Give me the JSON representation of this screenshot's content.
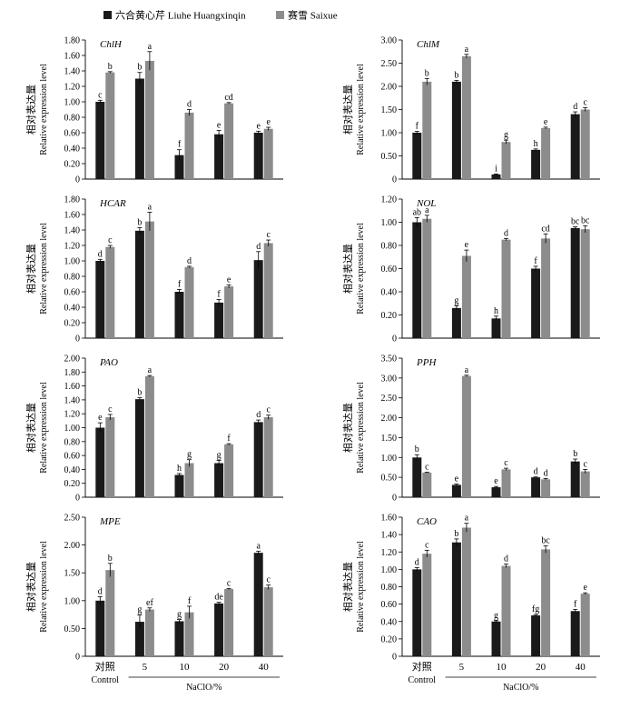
{
  "legend": {
    "items": [
      {
        "label": "六合黄心芹 Liuhe Huangxinqin",
        "color": "#1a1a1a"
      },
      {
        "label": "赛雪 Saixue",
        "color": "#8c8c8c"
      }
    ]
  },
  "ylabel_cn": "相对表达量",
  "ylabel_en": "Relative expression level",
  "x_axis": {
    "categories": [
      "5",
      "10",
      "20",
      "40"
    ],
    "control_cn": "对照",
    "control_en": "Control",
    "group_label": "NaClO/%"
  },
  "chart_data": [
    {
      "type": "bar",
      "title": "ChlH",
      "ylim": [
        0,
        1.8
      ],
      "yticks": [
        "0",
        "0.20",
        "0.40",
        "0.60",
        "0.80",
        "1.00",
        "1.20",
        "1.40",
        "1.60",
        "1.80"
      ],
      "series": [
        {
          "name": "六合黄心芹 Liuhe Huangxinqin",
          "values": [
            1.0,
            1.3,
            0.31,
            0.58,
            0.6
          ],
          "errors": [
            0.02,
            0.08,
            0.07,
            0.05,
            0.02
          ],
          "letters": [
            "c",
            "b",
            "f",
            "e",
            "e"
          ]
        },
        {
          "name": "赛雪 Saixue",
          "values": [
            1.38,
            1.53,
            0.86,
            0.98,
            0.65
          ],
          "errors": [
            0.01,
            0.12,
            0.04,
            0.01,
            0.02
          ],
          "letters": [
            "b",
            "a",
            "d",
            "cd",
            "e"
          ]
        }
      ]
    },
    {
      "type": "bar",
      "title": "ChlM",
      "ylim": [
        0,
        3.0
      ],
      "yticks": [
        "0",
        "0.50",
        "1.00",
        "1.50",
        "2.00",
        "2.50",
        "3.00"
      ],
      "series": [
        {
          "name": "六合黄心芹 Liuhe Huangxinqin",
          "values": [
            1.0,
            2.1,
            0.1,
            0.63,
            1.4
          ],
          "errors": [
            0.03,
            0.03,
            0.01,
            0.02,
            0.05
          ],
          "letters": [
            "f",
            "b",
            "i",
            "h",
            "d"
          ]
        },
        {
          "name": "赛雪 Saixue",
          "values": [
            2.1,
            2.65,
            0.8,
            1.1,
            1.5
          ],
          "errors": [
            0.07,
            0.04,
            0.04,
            0.02,
            0.04
          ],
          "letters": [
            "b",
            "a",
            "g",
            "e",
            "c"
          ]
        }
      ]
    },
    {
      "type": "bar",
      "title": "HCAR",
      "ylim": [
        0,
        1.8
      ],
      "yticks": [
        "0",
        "0.20",
        "0.40",
        "0.60",
        "0.80",
        "1.00",
        "1.20",
        "1.40",
        "1.60",
        "1.80"
      ],
      "series": [
        {
          "name": "六合黄心芹 Liuhe Huangxinqin",
          "values": [
            1.0,
            1.39,
            0.6,
            0.46,
            1.01
          ],
          "errors": [
            0.02,
            0.04,
            0.03,
            0.04,
            0.11
          ],
          "letters": [
            "d",
            "b",
            "f",
            "f",
            "d"
          ]
        },
        {
          "name": "赛雪 Saixue",
          "values": [
            1.18,
            1.51,
            0.92,
            0.67,
            1.23
          ],
          "errors": [
            0.02,
            0.12,
            0.01,
            0.02,
            0.04
          ],
          "letters": [
            "c",
            "a",
            "d",
            "e",
            "c"
          ]
        }
      ]
    },
    {
      "type": "bar",
      "title": "NOL",
      "ylim": [
        0,
        1.2
      ],
      "yticks": [
        "0",
        "0.20",
        "0.40",
        "0.60",
        "0.80",
        "1.00",
        "1.20"
      ],
      "series": [
        {
          "name": "六合黄心芹 Liuhe Huangxinqin",
          "values": [
            1.0,
            0.26,
            0.17,
            0.6,
            0.95
          ],
          "errors": [
            0.04,
            0.02,
            0.02,
            0.02,
            0.01
          ],
          "letters": [
            "ab",
            "g",
            "h",
            "f",
            "bc"
          ]
        },
        {
          "name": "赛雪 Saixue",
          "values": [
            1.03,
            0.71,
            0.85,
            0.86,
            0.94
          ],
          "errors": [
            0.03,
            0.05,
            0.01,
            0.04,
            0.03
          ],
          "letters": [
            "a",
            "e",
            "d",
            "cd",
            "bc"
          ]
        }
      ]
    },
    {
      "type": "bar",
      "title": "PAO",
      "ylim": [
        0,
        2.0
      ],
      "yticks": [
        "0",
        "0.20",
        "0.40",
        "0.60",
        "0.80",
        "1.00",
        "1.20",
        "1.40",
        "1.60",
        "1.80",
        "2.00"
      ],
      "series": [
        {
          "name": "六合黄心芹 Liuhe Huangxinqin",
          "values": [
            1.0,
            1.41,
            0.32,
            0.49,
            1.08
          ],
          "errors": [
            0.07,
            0.02,
            0.02,
            0.04,
            0.03
          ],
          "letters": [
            "e",
            "b",
            "h",
            "g",
            "d"
          ]
        },
        {
          "name": "赛雪 Saixue",
          "values": [
            1.15,
            1.74,
            0.49,
            0.76,
            1.15
          ],
          "errors": [
            0.04,
            0.01,
            0.05,
            0.01,
            0.03
          ],
          "letters": [
            "c",
            "a",
            "g",
            "f",
            "c"
          ]
        }
      ]
    },
    {
      "type": "bar",
      "title": "PPH",
      "ylim": [
        0,
        3.5
      ],
      "yticks": [
        "0",
        "0.50",
        "1.00",
        "1.50",
        "2.00",
        "2.50",
        "3.00",
        "3.50"
      ],
      "series": [
        {
          "name": "六合黄心芹 Liuhe Huangxinqin",
          "values": [
            1.0,
            0.31,
            0.25,
            0.5,
            0.9
          ],
          "errors": [
            0.07,
            0.02,
            0.02,
            0.01,
            0.06
          ],
          "letters": [
            "b",
            "e",
            "e",
            "d",
            "b"
          ]
        },
        {
          "name": "赛雪 Saixue",
          "values": [
            0.62,
            3.05,
            0.7,
            0.45,
            0.65
          ],
          "errors": [
            0.01,
            0.02,
            0.03,
            0.02,
            0.05
          ],
          "letters": [
            "c",
            "a",
            "c",
            "d",
            "c"
          ]
        }
      ]
    },
    {
      "type": "bar",
      "title": "MPE",
      "ylim": [
        0,
        2.5
      ],
      "yticks": [
        "0",
        "0.50",
        "1.00",
        "1.50",
        "2.00",
        "2.50"
      ],
      "series": [
        {
          "name": "六合黄心芹 Liuhe Huangxinqin",
          "values": [
            1.0,
            0.62,
            0.63,
            0.95,
            1.86
          ],
          "errors": [
            0.07,
            0.12,
            0.03,
            0.02,
            0.03
          ],
          "letters": [
            "d",
            "g",
            "g",
            "de",
            "a"
          ]
        },
        {
          "name": "赛雪 Saixue",
          "values": [
            1.55,
            0.84,
            0.79,
            1.21,
            1.24
          ],
          "errors": [
            0.12,
            0.03,
            0.11,
            0.01,
            0.04
          ],
          "letters": [
            "b",
            "ef",
            "f",
            "c",
            "c"
          ]
        }
      ]
    },
    {
      "type": "bar",
      "title": "CAO",
      "ylim": [
        0,
        1.6
      ],
      "yticks": [
        "0",
        "0.20",
        "0.40",
        "0.60",
        "0.80",
        "1.00",
        "1.20",
        "1.40",
        "1.60"
      ],
      "series": [
        {
          "name": "六合黄心芹 Liuhe Huangxinqin",
          "values": [
            1.0,
            1.31,
            0.4,
            0.47,
            0.52
          ],
          "errors": [
            0.02,
            0.04,
            0.01,
            0.01,
            0.02
          ],
          "letters": [
            "d",
            "b",
            "g",
            "fg",
            "f"
          ]
        },
        {
          "name": "赛雪 Saixue",
          "values": [
            1.18,
            1.48,
            1.04,
            1.23,
            0.72
          ],
          "errors": [
            0.04,
            0.05,
            0.02,
            0.04,
            0.01
          ],
          "letters": [
            "c",
            "a",
            "d",
            "bc",
            "e"
          ]
        }
      ]
    }
  ]
}
